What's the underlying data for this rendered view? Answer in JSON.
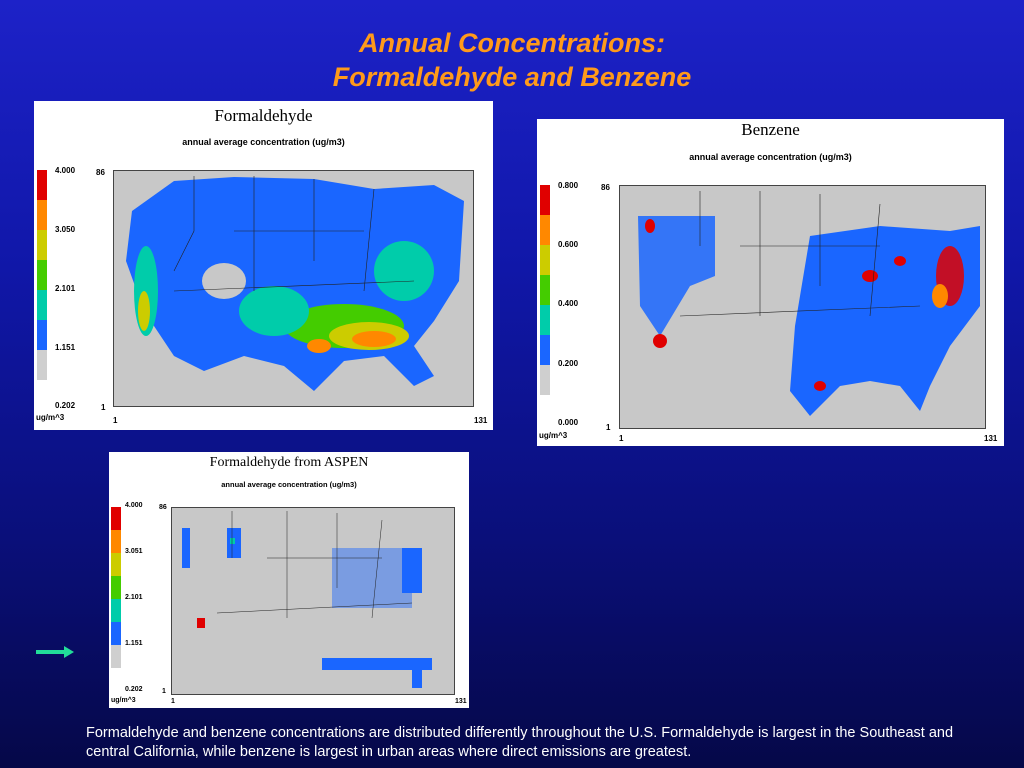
{
  "slide": {
    "title_line1": "Annual Concentrations:",
    "title_line2": "Formaldehyde and Benzene",
    "caption": "Formaldehyde and benzene concentrations are distributed differently throughout the U.S.  Formaldehyde is largest in the Southeast and central California, while benzene is largest in urban areas where direct emissions are greatest.",
    "arrow_icon": "right-arrow-icon"
  },
  "colors": {
    "title": "#ff9a1a",
    "scale": [
      "#e00000",
      "#ff8800",
      "#cccc00",
      "#44cc00",
      "#00ccaa",
      "#1a66ff",
      "#cfcfcf"
    ],
    "map_land": "#c8c8c8"
  },
  "panels": {
    "formaldehyde": {
      "title": "Formaldehyde",
      "subtitle": "annual average concentration (ug/m3)",
      "ticks": [
        "4.000",
        "3.050",
        "2.101",
        "1.151",
        "0.202"
      ],
      "unit": "ug/m^3",
      "y_top": "86",
      "y_bottom": "1",
      "x_left": "1",
      "x_right": "131"
    },
    "benzene": {
      "title": "Benzene",
      "subtitle": "annual average concentration (ug/m3)",
      "ticks": [
        "0.800",
        "0.600",
        "0.400",
        "0.200",
        "0.000"
      ],
      "unit": "ug/m^3",
      "y_top": "86",
      "y_bottom": "1",
      "x_left": "1",
      "x_right": "131"
    },
    "aspen": {
      "title": "Formaldehyde from ASPEN",
      "subtitle": "annual average concentration (ug/m3)",
      "ticks": [
        "4.000",
        "3.051",
        "2.101",
        "1.151",
        "0.202"
      ],
      "unit": "ug/m^3",
      "y_top": "86",
      "y_bottom": "1",
      "x_left": "1",
      "x_right": "131"
    }
  }
}
